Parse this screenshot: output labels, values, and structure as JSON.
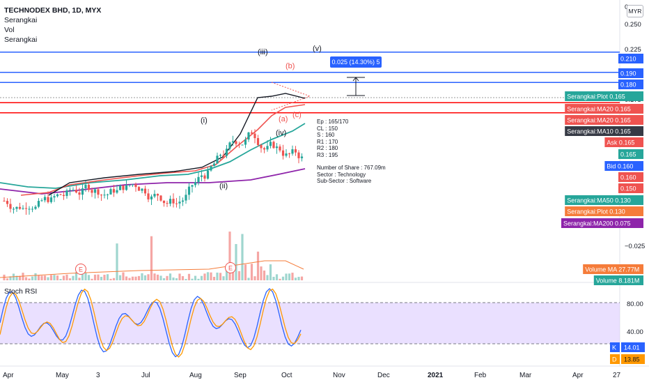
{
  "header": {
    "symbol_line": "TECHNODEX BHD, 1D, MYX",
    "indicators": [
      "Serangkai",
      "Vol",
      "Serangkai"
    ],
    "currency": "MYR"
  },
  "colors": {
    "up": "#26a69a",
    "down": "#ef5350",
    "ma10": "#131722",
    "ma20": "#ef5350",
    "ma50": "#26a69a",
    "ma200": "#8e24aa",
    "hline_blue": "#2962ff",
    "hline_red": "#ff0000",
    "stoch_k": "#2962ff",
    "stoch_d": "#ff9800",
    "stoch_band": "#d9c6ff"
  },
  "main_axis": {
    "ticks": [
      "0.250",
      "0.225",
      "0.200",
      "0.175",
      "−0.025"
    ],
    "top_label": "0"
  },
  "price_tags": [
    {
      "text": "0.210",
      "price": 0.21,
      "bg": "#2962ff",
      "name": "tag-resistance-210"
    },
    {
      "text": "0.190",
      "price": 0.19,
      "bg": "#2962ff",
      "name": "tag-resistance-190"
    },
    {
      "text": "0.180",
      "price": 0.18,
      "bg": "#2962ff",
      "name": "tag-resistance-180"
    },
    {
      "text": "Serangkai:Plot · 0.165",
      "price": 0.165,
      "bg": "#26a69a",
      "name": "tag-serangkai-plot"
    },
    {
      "text": "Serangkai:MA20 · 0.165",
      "price": 0.165,
      "bg": "#ef5350",
      "name": "tag-ma20-a"
    },
    {
      "text": "Serangkai:MA20 · 0.165",
      "price": 0.165,
      "bg": "#ef5350",
      "name": "tag-ma20-b"
    },
    {
      "text": "Serangkai:MA10 · 0.165",
      "price": 0.165,
      "bg": "#363a45",
      "name": "tag-ma10"
    },
    {
      "text": "Ask · 0.165",
      "price": 0.165,
      "bg": "#ef5350",
      "name": "tag-ask"
    },
    {
      "text": "0.165",
      "price": 0.165,
      "bg": "#26a69a",
      "name": "tag-last"
    },
    {
      "text": "Bid · 0.160",
      "price": 0.16,
      "bg": "#2962ff",
      "name": "tag-bid"
    },
    {
      "text": "0.160",
      "price": 0.16,
      "bg": "#ef5350",
      "name": "tag-support-160"
    },
    {
      "text": "0.150",
      "price": 0.15,
      "bg": "#ef5350",
      "name": "tag-support-150"
    },
    {
      "text": "Serangkai:MA50 · 0.130",
      "price": 0.13,
      "bg": "#26a69a",
      "name": "tag-ma50"
    },
    {
      "text": "Serangkai:Plot · 0.130",
      "price": 0.13,
      "bg": "#f57c3a",
      "name": "tag-serangkai-plot-2"
    },
    {
      "text": "Serangkai:MA200 · 0.075",
      "price": 0.075,
      "bg": "#8e24aa",
      "name": "tag-ma200"
    },
    {
      "text": "Volume MA · 27.77M",
      "price": null,
      "bg": "#f57c3a",
      "name": "tag-volume-ma"
    },
    {
      "text": "Volume · 8.181M",
      "price": null,
      "bg": "#26a69a",
      "name": "tag-volume"
    }
  ],
  "measure": {
    "label": "0.025 (14.30%) 5"
  },
  "wave_labels": [
    "(i)",
    "(ii)",
    "(iii)",
    "(iv)",
    "(v)",
    "(a)",
    "(b)",
    "(c)"
  ],
  "earnings_marker": "E",
  "info_lines": [
    "Ep : 165/170",
    "CL : 150",
    "S : 160",
    "R1 : 170",
    "R2 : 180",
    "R3 : 195",
    "",
    "Number of Share : 767.09m",
    "Sector : Technology",
    "Sub-Sector : Software"
  ],
  "stoch": {
    "title": "Stoch RSI",
    "ticks": [
      "80.00",
      "40.00"
    ],
    "k_label": "K",
    "k_value": "14.01",
    "d_label": "D",
    "d_value": "13.85"
  },
  "time_axis": [
    "Apr",
    "May",
    "3",
    "Jul",
    "Aug",
    "Sep",
    "Oct",
    "Nov",
    "Dec",
    "2021",
    "Feb",
    "Mar",
    "Apr",
    "27"
  ],
  "chart_data": {
    "type": "candlestick",
    "series_levels": {
      "ma200_last": 0.075,
      "ma50_last": 0.13,
      "ma20_last": 0.165,
      "ma10_last": 0.165
    },
    "horizontal_levels": [
      0.21,
      0.19,
      0.18,
      0.165,
      0.16,
      0.15
    ]
  }
}
